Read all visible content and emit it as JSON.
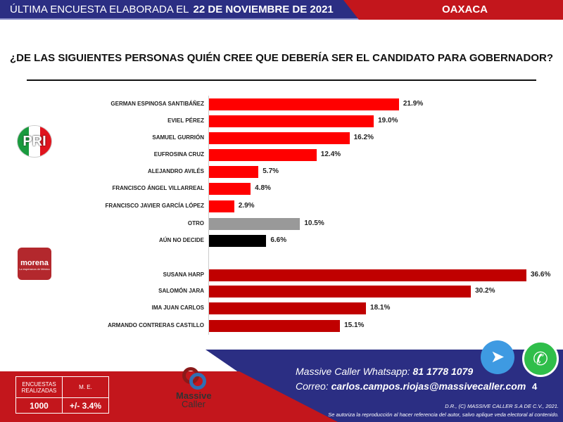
{
  "header": {
    "prefix": "ÚLTIMA ENCUESTA ELABORADA EL",
    "date": "22 DE NOVIEMBRE DE 2021",
    "region": "OAXACA"
  },
  "chart_data": {
    "type": "bar",
    "orientation": "horizontal",
    "title": "¿DE LAS SIGUIENTES PERSONAS QUIÉN CREE QUE DEBERÍA SER EL CANDIDATO PARA GOBERNADOR?",
    "xlim": [
      0,
      40
    ],
    "groups": [
      {
        "party": "PRI",
        "categories": [
          "GERMAN ESPINOSA SANTIBÁÑEZ",
          "EVIEL PÉREZ",
          "SAMUEL GURRIÓN",
          "EUFROSINA CRUZ",
          "ALEJANDRO AVILÉS",
          "FRANCISCO ÁNGEL VILLARREAL",
          "FRANCISCO JAVIER GARCÍA LÓPEZ",
          "OTRO",
          "AÚN NO DECIDE"
        ],
        "values": [
          21.9,
          19.0,
          16.2,
          12.4,
          5.7,
          4.8,
          2.9,
          10.5,
          6.6
        ],
        "labels": [
          "21.9%",
          "19.0%",
          "16.2%",
          "12.4%",
          "5.7%",
          "4.8%",
          "2.9%",
          "10.5%",
          "6.6%"
        ],
        "colors": [
          "#ff0000",
          "#ff0000",
          "#ff0000",
          "#ff0000",
          "#ff0000",
          "#ff0000",
          "#ff0000",
          "#999999",
          "#000000"
        ]
      },
      {
        "party": "morena",
        "categories": [
          "SUSANA HARP",
          "SALOMÓN JARA",
          "IMA JUAN CARLOS",
          "ARMANDO CONTRERAS CASTILLO"
        ],
        "values": [
          36.6,
          30.2,
          18.1,
          15.1
        ],
        "labels": [
          "36.6%",
          "30.2%",
          "18.1%",
          "15.1%"
        ],
        "colors": [
          "#c00000",
          "#c00000",
          "#c00000",
          "#c00000"
        ]
      }
    ]
  },
  "logos": {
    "pri": "PRI",
    "morena": "morena",
    "morena_sub": "La esperanza de México",
    "massive": "Massive",
    "caller": "Caller"
  },
  "stats": {
    "h1": "ENCUESTAS REALIZADAS",
    "h2": "M. E.",
    "v1": "1000",
    "v2": "+/- 3.4%"
  },
  "contact": {
    "wa_label": "Massive Caller Whatsapp:",
    "wa_number": "81 1778 1079",
    "mail_label": "Correo:",
    "mail": "carlos.campos.riojas@massivecaller.com",
    "page": "4",
    "copyright": "D.R., (C) MASSIVE CALLER S.A DE C.V., 2021.",
    "notice": "Se autoriza la reproducción al hacer referencia del autor, salvo aplique veda electoral al contenido."
  },
  "icons": {
    "telegram": "telegram-icon",
    "whatsapp": "whatsapp-icon"
  }
}
